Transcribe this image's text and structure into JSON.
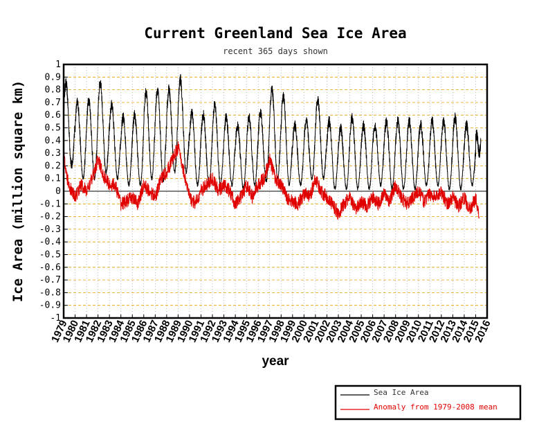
{
  "chart_data": {
    "type": "line",
    "title": "Current Greenland Sea Ice Area",
    "subtitle": "recent 365 days shown",
    "xlabel": "year",
    "ylabel": "Ice Area (million square km)",
    "xlim": [
      1979,
      2016
    ],
    "ylim": [
      -1,
      1
    ],
    "x_ticks": [
      "1979",
      "1980",
      "1981",
      "1982",
      "1983",
      "1984",
      "1985",
      "1986",
      "1987",
      "1988",
      "1989",
      "1990",
      "1991",
      "1992",
      "1993",
      "1994",
      "1995",
      "1996",
      "1997",
      "1998",
      "1999",
      "2000",
      "2001",
      "2002",
      "2003",
      "2004",
      "2005",
      "2006",
      "2007",
      "2008",
      "2009",
      "2010",
      "2011",
      "2012",
      "2013",
      "2014",
      "2015",
      "2016"
    ],
    "y_ticks": [
      "1",
      "0.9",
      "0.8",
      "0.7",
      "0.6",
      "0.5",
      "0.4",
      "0.3",
      "0.2",
      "0.1",
      "0",
      "-0.1",
      "-0.2",
      "-0.3",
      "-0.4",
      "-0.5",
      "-0.6",
      "-0.7",
      "-0.8",
      "-0.9",
      "-1"
    ],
    "grid": true,
    "legend_position": "bottom-right",
    "series": [
      {
        "name": "Sea Ice Area",
        "color": "#000000",
        "seasonal_peaks": [
          {
            "year": 1979,
            "max": 0.85,
            "min": 0.2
          },
          {
            "year": 1980,
            "max": 0.7,
            "min": 0.1
          },
          {
            "year": 1981,
            "max": 0.72,
            "min": 0.1
          },
          {
            "year": 1982,
            "max": 0.86,
            "min": 0.15
          },
          {
            "year": 1983,
            "max": 0.68,
            "min": 0.1
          },
          {
            "year": 1984,
            "max": 0.58,
            "min": 0.05
          },
          {
            "year": 1985,
            "max": 0.6,
            "min": 0.05
          },
          {
            "year": 1986,
            "max": 0.78,
            "min": 0.1
          },
          {
            "year": 1987,
            "max": 0.8,
            "min": 0.08
          },
          {
            "year": 1988,
            "max": 0.8,
            "min": 0.15
          },
          {
            "year": 1989,
            "max": 0.88,
            "min": 0.15
          },
          {
            "year": 1990,
            "max": 0.62,
            "min": 0.05
          },
          {
            "year": 1991,
            "max": 0.6,
            "min": 0.05
          },
          {
            "year": 1992,
            "max": 0.68,
            "min": 0.05
          },
          {
            "year": 1993,
            "max": 0.58,
            "min": 0.05
          },
          {
            "year": 1994,
            "max": 0.52,
            "min": 0.02
          },
          {
            "year": 1995,
            "max": 0.58,
            "min": 0.05
          },
          {
            "year": 1996,
            "max": 0.62,
            "min": 0.08
          },
          {
            "year": 1997,
            "max": 0.8,
            "min": 0.1
          },
          {
            "year": 1998,
            "max": 0.75,
            "min": 0.05
          },
          {
            "year": 1999,
            "max": 0.52,
            "min": 0.05
          },
          {
            "year": 2000,
            "max": 0.55,
            "min": 0.1
          },
          {
            "year": 2001,
            "max": 0.72,
            "min": 0.1
          },
          {
            "year": 2002,
            "max": 0.55,
            "min": 0.02
          },
          {
            "year": 2003,
            "max": 0.5,
            "min": 0.02
          },
          {
            "year": 2004,
            "max": 0.58,
            "min": 0.02
          },
          {
            "year": 2005,
            "max": 0.52,
            "min": 0.02
          },
          {
            "year": 2006,
            "max": 0.52,
            "min": 0.05
          },
          {
            "year": 2007,
            "max": 0.55,
            "min": 0.02
          },
          {
            "year": 2008,
            "max": 0.55,
            "min": 0.02
          },
          {
            "year": 2009,
            "max": 0.55,
            "min": 0.02
          },
          {
            "year": 2010,
            "max": 0.52,
            "min": 0.05
          },
          {
            "year": 2011,
            "max": 0.55,
            "min": 0.05
          },
          {
            "year": 2012,
            "max": 0.55,
            "min": 0.02
          },
          {
            "year": 2013,
            "max": 0.58,
            "min": 0.02
          },
          {
            "year": 2014,
            "max": 0.52,
            "min": 0.05
          },
          {
            "year": 2015,
            "max": 0.45,
            "min": 0.3
          }
        ]
      },
      {
        "name": "Anomaly from 1979-2008 mean",
        "color": "#e00000",
        "anomaly_points": [
          [
            1979.0,
            0.28
          ],
          [
            1979.3,
            0.1
          ],
          [
            1979.6,
            0.02
          ],
          [
            1980.0,
            -0.05
          ],
          [
            1980.5,
            0.05
          ],
          [
            1981.0,
            0.0
          ],
          [
            1981.5,
            0.1
          ],
          [
            1982.0,
            0.25
          ],
          [
            1982.5,
            0.12
          ],
          [
            1983.0,
            0.05
          ],
          [
            1983.5,
            0.05
          ],
          [
            1984.0,
            -0.1
          ],
          [
            1984.5,
            -0.08
          ],
          [
            1985.0,
            -0.05
          ],
          [
            1985.5,
            -0.1
          ],
          [
            1986.0,
            0.05
          ],
          [
            1986.5,
            0.0
          ],
          [
            1987.0,
            -0.05
          ],
          [
            1987.5,
            0.1
          ],
          [
            1988.0,
            0.15
          ],
          [
            1988.5,
            0.25
          ],
          [
            1989.0,
            0.35
          ],
          [
            1989.5,
            0.15
          ],
          [
            1990.0,
            -0.05
          ],
          [
            1990.5,
            -0.1
          ],
          [
            1991.0,
            0.0
          ],
          [
            1991.5,
            0.05
          ],
          [
            1992.0,
            0.1
          ],
          [
            1992.5,
            0.0
          ],
          [
            1993.0,
            0.05
          ],
          [
            1993.5,
            0.0
          ],
          [
            1994.0,
            -0.1
          ],
          [
            1994.5,
            -0.05
          ],
          [
            1995.0,
            0.05
          ],
          [
            1995.5,
            -0.05
          ],
          [
            1996.0,
            0.05
          ],
          [
            1996.5,
            0.1
          ],
          [
            1997.0,
            0.25
          ],
          [
            1997.5,
            0.1
          ],
          [
            1998.0,
            0.05
          ],
          [
            1998.5,
            -0.05
          ],
          [
            1999.0,
            -0.08
          ],
          [
            1999.5,
            -0.1
          ],
          [
            2000.0,
            -0.02
          ],
          [
            2000.5,
            -0.05
          ],
          [
            2001.0,
            0.1
          ],
          [
            2001.5,
            0.0
          ],
          [
            2002.0,
            -0.05
          ],
          [
            2002.5,
            -0.1
          ],
          [
            2003.0,
            -0.18
          ],
          [
            2003.5,
            -0.1
          ],
          [
            2004.0,
            -0.05
          ],
          [
            2004.5,
            -0.15
          ],
          [
            2005.0,
            -0.08
          ],
          [
            2005.5,
            -0.12
          ],
          [
            2006.0,
            -0.05
          ],
          [
            2006.5,
            -0.1
          ],
          [
            2007.0,
            -0.02
          ],
          [
            2007.5,
            -0.08
          ],
          [
            2008.0,
            0.05
          ],
          [
            2008.5,
            -0.05
          ],
          [
            2009.0,
            -0.1
          ],
          [
            2009.5,
            -0.05
          ],
          [
            2010.0,
            0.0
          ],
          [
            2010.5,
            -0.08
          ],
          [
            2011.0,
            -0.02
          ],
          [
            2011.5,
            -0.05
          ],
          [
            2012.0,
            0.0
          ],
          [
            2012.5,
            -0.1
          ],
          [
            2013.0,
            -0.05
          ],
          [
            2013.5,
            -0.12
          ],
          [
            2014.0,
            -0.05
          ],
          [
            2014.5,
            -0.15
          ],
          [
            2015.0,
            -0.05
          ],
          [
            2015.3,
            -0.2
          ]
        ]
      }
    ],
    "zero_line": true
  },
  "legend": {
    "items": [
      {
        "label": "Sea Ice Area",
        "color": "#000000"
      },
      {
        "label": "Anomaly from 1979-2008 mean",
        "color": "#e00000"
      }
    ]
  }
}
